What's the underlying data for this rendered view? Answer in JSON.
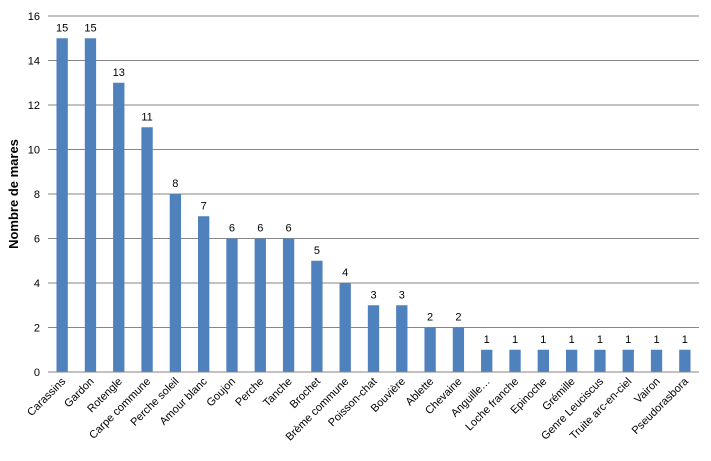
{
  "chart_data": {
    "type": "bar",
    "title": "",
    "xlabel": "",
    "ylabel": "Nombre de mares",
    "ylim": [
      0,
      16
    ],
    "yticks": [
      0,
      2,
      4,
      6,
      8,
      10,
      12,
      14,
      16
    ],
    "grid": true,
    "legend": "none",
    "bar_color": "#4f81bd",
    "grid_color": "#868686",
    "categories": [
      "Carassins",
      "Gardon",
      "Rotengle",
      "Carpe commune",
      "Perche soleil",
      "Amour blanc",
      "Goujon",
      "Perche",
      "Tanche",
      "Brochet",
      "Brème commune",
      "Poisson-chat",
      "Bouvière",
      "Ablette",
      "Chevaine",
      "Anguille…",
      "Loche franche",
      "Epinoche",
      "Grémille",
      "Genre Leuciscus",
      "Truite arc-en-ciel",
      "Vairon",
      "Pseudorasbora"
    ],
    "values": [
      15,
      15,
      13,
      11,
      8,
      7,
      6,
      6,
      6,
      5,
      4,
      3,
      3,
      2,
      2,
      1,
      1,
      1,
      1,
      1,
      1,
      1,
      1
    ]
  }
}
